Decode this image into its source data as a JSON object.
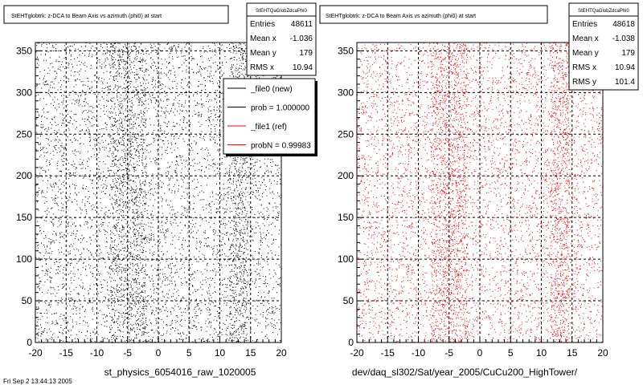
{
  "footer_text": "Fri Sep  2 13:44:13 2005",
  "legend": {
    "entries": [
      {
        "label": "_file0 (new)",
        "color": "#000000"
      },
      {
        "label": "prob = 1.000000",
        "color": "#000000"
      },
      {
        "label": "_file1 (ref)",
        "color": "#ff0000"
      },
      {
        "label": "probN = 0.99983",
        "color": "#ff0000"
      }
    ]
  },
  "chart_data": [
    {
      "type": "scatter",
      "title": "StEHTglobtrk: z-DCA to Beam Axis vs azimuth (phi0) at start",
      "xlabel": "st_physics_6054016_raw_1020005",
      "ylabel": "",
      "xlim": [
        -20,
        20
      ],
      "ylim": [
        0,
        360
      ],
      "xticks": [
        -20,
        -15,
        -10,
        -5,
        0,
        5,
        10,
        15,
        20
      ],
      "yticks": [
        0,
        50,
        100,
        150,
        200,
        250,
        300,
        350
      ],
      "grid": true,
      "marker_color": "#000000",
      "n_points": 48611,
      "stats": {
        "name": "StEHTQaGlobZdcaPhi0",
        "rows": [
          {
            "label": "Entries",
            "value": "48611"
          },
          {
            "label": "Mean x",
            "value": "-1.036"
          },
          {
            "label": "Mean y",
            "value": "179"
          },
          {
            "label": "RMS x",
            "value": "10.94"
          }
        ]
      }
    },
    {
      "type": "scatter",
      "title": "StEHTglobtrk: z-DCA to Beam Axis vs azimuth (phi0) at start",
      "xlabel": "dev/daq_sl302/Sat/year_2005/CuCu200_HighTower/",
      "ylabel": "",
      "xlim": [
        -20,
        20
      ],
      "ylim": [
        0,
        360
      ],
      "xticks": [
        -20,
        -15,
        -10,
        -5,
        0,
        5,
        10,
        15,
        20
      ],
      "yticks": [
        0,
        50,
        100,
        150,
        200,
        250,
        300,
        350
      ],
      "grid": true,
      "marker_color": "#ff0000",
      "n_points": 48618,
      "stats": {
        "name": "StEHTQaGlobZdcaPhi0",
        "rows": [
          {
            "label": "Entries",
            "value": "48618"
          },
          {
            "label": "Mean x",
            "value": "-1.038"
          },
          {
            "label": "Mean y",
            "value": "179"
          },
          {
            "label": "RMS x",
            "value": "10.94"
          },
          {
            "label": "RMS y",
            "value": "101.4"
          }
        ]
      }
    }
  ]
}
